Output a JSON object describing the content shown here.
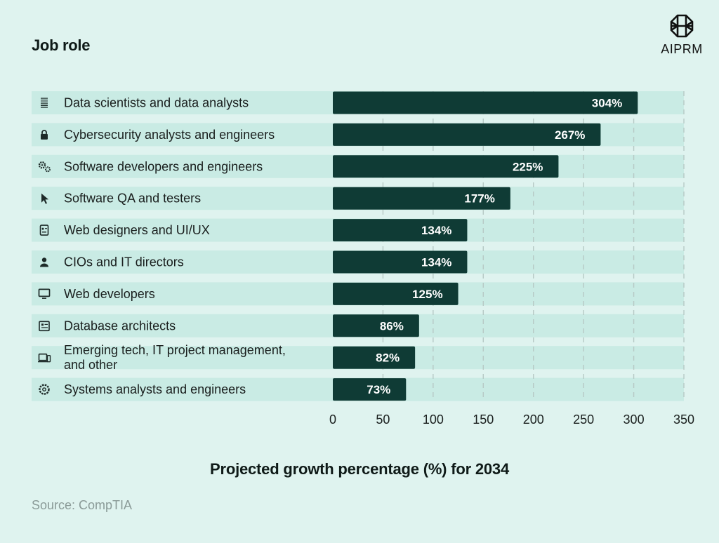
{
  "header": {
    "title": "Job role"
  },
  "brand": {
    "name": "AIPRM",
    "icon": "aiprm-logo-icon"
  },
  "chart_data": {
    "type": "bar",
    "orientation": "horizontal",
    "categories": [
      [
        "Data scientists and data analysts"
      ],
      [
        "Cybersecurity analysts and engineers"
      ],
      [
        "Software developers and engineers"
      ],
      [
        "Software QA and testers"
      ],
      [
        "Web designers and UI/UX"
      ],
      [
        "CIOs and IT directors"
      ],
      [
        "Web developers"
      ],
      [
        "Database architects"
      ],
      [
        "Emerging tech, IT project management,",
        "and other"
      ],
      [
        "Systems analysts and engineers"
      ]
    ],
    "icons": [
      "document-list-icon",
      "lock-icon",
      "gears-icon",
      "cursor-icon",
      "id-card-icon",
      "user-icon",
      "monitor-icon",
      "database-file-icon",
      "devices-icon",
      "settings-icon"
    ],
    "values": [
      304,
      267,
      225,
      177,
      134,
      134,
      125,
      86,
      82,
      73
    ],
    "value_labels": [
      "304%",
      "267%",
      "225%",
      "177%",
      "134%",
      "134%",
      "125%",
      "86%",
      "82%",
      "73%"
    ],
    "xlim": [
      0,
      350
    ],
    "xticks": [
      0,
      50,
      100,
      150,
      200,
      250,
      300,
      350
    ],
    "xlabel": "Projected growth percentage (%) for 2034",
    "grid": "vertical dashed",
    "colors": {
      "bar": "#0f3b35",
      "row_band": "#c9ebe4",
      "gridline": "#b7c9c5",
      "background": "#dff3ef"
    }
  },
  "source": "Source: CompTIA"
}
